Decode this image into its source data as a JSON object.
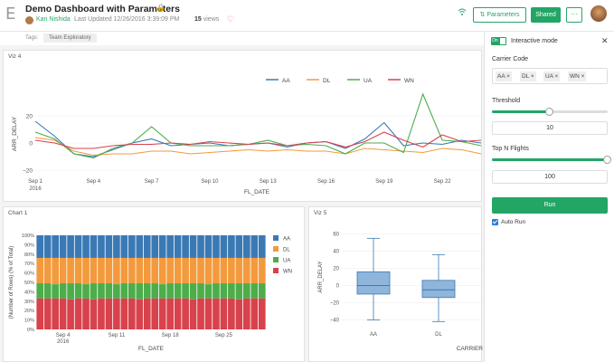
{
  "header": {
    "logo": "E",
    "title": "Demo Dashboard with Parameters",
    "author": "Kan Nishida",
    "updated": "Last Updated 12/26/2016 3:39:09 PM",
    "views_count": "15",
    "views_label": "views",
    "params_label": "Parameters",
    "shared_label": "Shared",
    "more_label": "···",
    "tags_label": "Tags:",
    "tag": "Team Exploratory"
  },
  "viz4": {
    "title": "Viz 4",
    "legend": [
      "AA",
      "DL",
      "UA",
      "WN"
    ],
    "colors": [
      "#3b79b5",
      "#f39a3c",
      "#4cad4a",
      "#d8424c"
    ],
    "xlabel": "FL_DATE",
    "ylabel": "ARR_DELAY",
    "xticks": [
      "Sep 1",
      "Sep 4",
      "Sep 7",
      "Sep 10",
      "Sep 13",
      "Sep 16",
      "Sep 19",
      "Sep 22"
    ],
    "year_label": "2016",
    "yticks": [
      "20",
      "0",
      "−20"
    ]
  },
  "chart1": {
    "title": "Chart 1",
    "legend": [
      "AA",
      "DL",
      "UA",
      "WN"
    ],
    "ylabel": "(Number of Rows) (% of Total)",
    "xlabel": "FL_DATE",
    "yticks": [
      "100%",
      "90%",
      "80%",
      "70%",
      "60%",
      "50%",
      "40%",
      "30%",
      "20%",
      "10%",
      "0%"
    ],
    "xticks": [
      "Sep 4",
      "Sep 11",
      "Sep 18",
      "Sep 25"
    ],
    "year_label": "2016"
  },
  "viz5": {
    "title": "Viz 5",
    "ylabel": "ARR_DELAY",
    "xlabel": "CARRIER",
    "yticks": [
      "60",
      "40",
      "20",
      "0",
      "−20",
      "−40"
    ],
    "categories": [
      "AA",
      "DL"
    ]
  },
  "sidebar": {
    "toggle_label": "On",
    "mode_label": "Interactive mode",
    "carrier_label": "Carrier Code",
    "chips": [
      "AA",
      "DL",
      "UA",
      "WN"
    ],
    "threshold_label": "Threshold",
    "threshold_value": "10",
    "threshold_fraction": 0.5,
    "topn_label": "Top N Flights",
    "topn_value": "100",
    "topn_fraction": 1.0,
    "run_label": "Run",
    "autorun_label": "Auto Run",
    "autorun_checked": true
  },
  "chart_data": [
    {
      "type": "line",
      "title": "Viz 4",
      "xlabel": "FL_DATE",
      "ylabel": "ARR_DELAY",
      "x": [
        "Sep 1",
        "Sep 2",
        "Sep 3",
        "Sep 4",
        "Sep 5",
        "Sep 6",
        "Sep 7",
        "Sep 8",
        "Sep 9",
        "Sep 10",
        "Sep 11",
        "Sep 12",
        "Sep 13",
        "Sep 14",
        "Sep 15",
        "Sep 16",
        "Sep 17",
        "Sep 18",
        "Sep 19",
        "Sep 20",
        "Sep 21",
        "Sep 22",
        "Sep 23",
        "Sep 24"
      ],
      "ylim": [
        -22,
        38
      ],
      "series": [
        {
          "name": "AA",
          "values": [
            16,
            5,
            -8,
            -10,
            -5,
            0,
            3,
            -2,
            -1,
            0,
            -2,
            -1,
            0,
            -3,
            0,
            1,
            -4,
            3,
            15,
            -2,
            0,
            -1,
            2,
            0
          ]
        },
        {
          "name": "DL",
          "values": [
            4,
            2,
            -6,
            -9,
            -8,
            -8,
            -6,
            -6,
            -8,
            -7,
            -6,
            -5,
            -6,
            -5,
            -6,
            -6,
            -8,
            -4,
            -5,
            -6,
            -7,
            -4,
            -5,
            -8
          ]
        },
        {
          "name": "UA",
          "values": [
            8,
            3,
            -8,
            -11,
            -4,
            0,
            12,
            0,
            -2,
            -2,
            -2,
            -1,
            2,
            -2,
            -1,
            -2,
            -8,
            0,
            0,
            -7,
            36,
            2,
            1,
            -2
          ]
        },
        {
          "name": "WN",
          "values": [
            2,
            0,
            -4,
            -4,
            -2,
            -1,
            -1,
            0,
            -1,
            1,
            0,
            -1,
            0,
            -2,
            0,
            1,
            -3,
            1,
            8,
            2,
            -3,
            6,
            1,
            2
          ]
        }
      ]
    },
    {
      "type": "bar",
      "title": "Chart 1",
      "stacked": "percent",
      "xlabel": "FL_DATE",
      "ylabel": "(Number of Rows) (% of Total)",
      "ylim": [
        0,
        100
      ],
      "n_categories": 30,
      "series": [
        {
          "name": "AA",
          "values": [
            24,
            24,
            24,
            24,
            24,
            24,
            24,
            24,
            24,
            24,
            24,
            24,
            24,
            24,
            24,
            24,
            24,
            24,
            24,
            24,
            24,
            24,
            24,
            24,
            24,
            24,
            24,
            24,
            24,
            24
          ]
        },
        {
          "name": "DL",
          "values": [
            27,
            27,
            28,
            27,
            27,
            27,
            28,
            27,
            27,
            27,
            28,
            27,
            27,
            27,
            27,
            27,
            28,
            27,
            27,
            27,
            27,
            27,
            28,
            27,
            27,
            27,
            27,
            27,
            27,
            27
          ]
        },
        {
          "name": "UA",
          "values": [
            16,
            16,
            15,
            16,
            17,
            16,
            15,
            17,
            16,
            16,
            15,
            16,
            16,
            17,
            16,
            16,
            15,
            16,
            16,
            16,
            17,
            16,
            15,
            16,
            16,
            16,
            17,
            16,
            16,
            16
          ]
        },
        {
          "name": "WN",
          "values": [
            33,
            33,
            33,
            33,
            32,
            33,
            33,
            32,
            33,
            33,
            33,
            33,
            33,
            32,
            33,
            33,
            33,
            33,
            33,
            33,
            32,
            33,
            33,
            33,
            33,
            33,
            32,
            33,
            33,
            33
          ]
        }
      ]
    },
    {
      "type": "box",
      "title": "Viz 5",
      "xlabel": "CARRIER",
      "ylabel": "ARR_DELAY",
      "ylim": [
        -48,
        68
      ],
      "categories": [
        "AA",
        "DL"
      ],
      "boxes": [
        {
          "min": -40,
          "q1": -10,
          "median": 0,
          "q3": 16,
          "max": 55
        },
        {
          "min": -42,
          "q1": -14,
          "median": -5,
          "q3": 6,
          "max": 36
        }
      ]
    }
  ]
}
